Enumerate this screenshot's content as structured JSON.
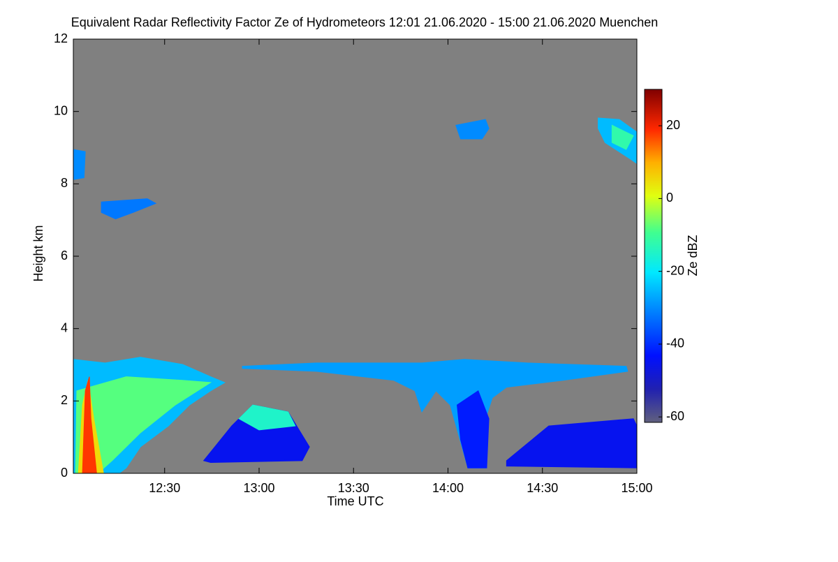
{
  "chart_data": {
    "type": "time-height",
    "title": "Equivalent Radar Reflectivity Factor Ze of Hydrometeors   12:01 21.06.2020 - 15:00 21.06.2020 Muenchen",
    "xlabel": "Time UTC",
    "ylabel": "Height km",
    "colorbar_label": "Ze dBZ",
    "background": "#808080",
    "colormap": "jet",
    "xlim": [
      721,
      900
    ],
    "xticks": [
      {
        "value": 750,
        "label": "12:30"
      },
      {
        "value": 780,
        "label": "13:00"
      },
      {
        "value": 810,
        "label": "13:30"
      },
      {
        "value": 840,
        "label": "14:00"
      },
      {
        "value": 870,
        "label": "14:30"
      },
      {
        "value": 900,
        "label": "15:00"
      }
    ],
    "ylim": [
      0,
      12
    ],
    "yticks": [
      0,
      2,
      4,
      6,
      8,
      10,
      12
    ],
    "zlim": [
      -61.5,
      30
    ],
    "zticks": [
      -60,
      -40,
      -20,
      0,
      20
    ],
    "patches": [
      {
        "x": [
          721,
          721,
          731.1,
          742.3,
          755.7,
          764.6,
          769.1,
          764.6,
          757.9,
          751.2,
          742.3,
          737.8,
          735.5
        ],
        "y": [
          0,
          3.15,
          3.05,
          3.21,
          3.01,
          2.67,
          2.51,
          2.28,
          1.89,
          1.31,
          0.73,
          0.15,
          0
        ],
        "value": -25
      },
      {
        "x": [
          721.7,
          722.1,
          737.8,
          755.7,
          764.6,
          753.4,
          742.3,
          733.3,
          728.8
        ],
        "y": [
          0,
          2.28,
          2.67,
          2.57,
          2.51,
          1.89,
          1.12,
          0.35,
          0
        ],
        "value": -8
      },
      {
        "x": [
          722.6,
          723.9,
          725.7,
          727.5,
          730.6
        ],
        "y": [
          0,
          1.89,
          2.57,
          1.51,
          0
        ],
        "value": 5
      },
      {
        "x": [
          723.9,
          724.8,
          726.1,
          726.6,
          728.4
        ],
        "y": [
          0,
          2.28,
          2.67,
          1.51,
          0
        ],
        "value": 18
      },
      {
        "x": [
          774.7,
          798.2,
          831.7,
          845.2,
          865.3,
          896.6,
          897.1,
          876.5,
          858.6,
          854.1,
          851.9,
          851.9,
          851.9,
          846.3,
          843.2,
          840.7,
          836.2,
          831.7,
          829.5,
          822.8,
          798.2,
          774.7
        ],
        "y": [
          2.96,
          3.05,
          3.05,
          3.15,
          3.05,
          2.96,
          2.82,
          2.57,
          2.38,
          2.09,
          1.51,
          0.73,
          0.15,
          0.15,
          1.12,
          1.89,
          2.28,
          1.7,
          2.28,
          2.57,
          2.82,
          2.9
        ],
        "value": -28
      },
      {
        "x": [
          842.9,
          849.6,
          853,
          852.3,
          846.3,
          844
        ],
        "y": [
          1.89,
          2.28,
          1.51,
          0.15,
          0.15,
          0.93
        ],
        "value": -42
      },
      {
        "x": [
          762.4,
          771.3,
          778,
          789.2,
          796,
          793.7,
          764.6
        ],
        "y": [
          0.35,
          1.31,
          1.89,
          1.7,
          0.73,
          0.35,
          0.3
        ],
        "value": -45
      },
      {
        "x": [
          773.6,
          778,
          789.2,
          791.5,
          780
        ],
        "y": [
          1.51,
          1.89,
          1.7,
          1.31,
          1.2
        ],
        "value": -15
      },
      {
        "x": [
          858.6,
          872,
          898.9,
          900,
          900,
          858.6
        ],
        "y": [
          0.35,
          1.31,
          1.51,
          1.31,
          0.15,
          0.2
        ],
        "value": -45
      },
      {
        "x": [
          721,
          724.8,
          724.4,
          721
        ],
        "y": [
          8.95,
          8.89,
          8.17,
          8.12
        ],
        "value": -30
      },
      {
        "x": [
          729.9,
          744.5,
          747.2,
          740,
          734.4,
          729.9
        ],
        "y": [
          7.5,
          7.59,
          7.46,
          7.21,
          7.03,
          7.21
        ],
        "value": -32
      },
      {
        "x": [
          842.5,
          851.9,
          853,
          850.8,
          844
        ],
        "y": [
          9.62,
          9.78,
          9.53,
          9.24,
          9.24
        ],
        "value": -30
      },
      {
        "x": [
          887.7,
          894.4,
          900,
          900,
          897.7,
          889.9,
          887.7
        ],
        "y": [
          9.82,
          9.78,
          9.43,
          8.56,
          8.7,
          9.14,
          9.53
        ],
        "value": -25
      },
      {
        "x": [
          892.1,
          898.9,
          896.6,
          892.1
        ],
        "y": [
          9.62,
          9.33,
          8.95,
          9.14
        ],
        "value": -12
      }
    ]
  }
}
